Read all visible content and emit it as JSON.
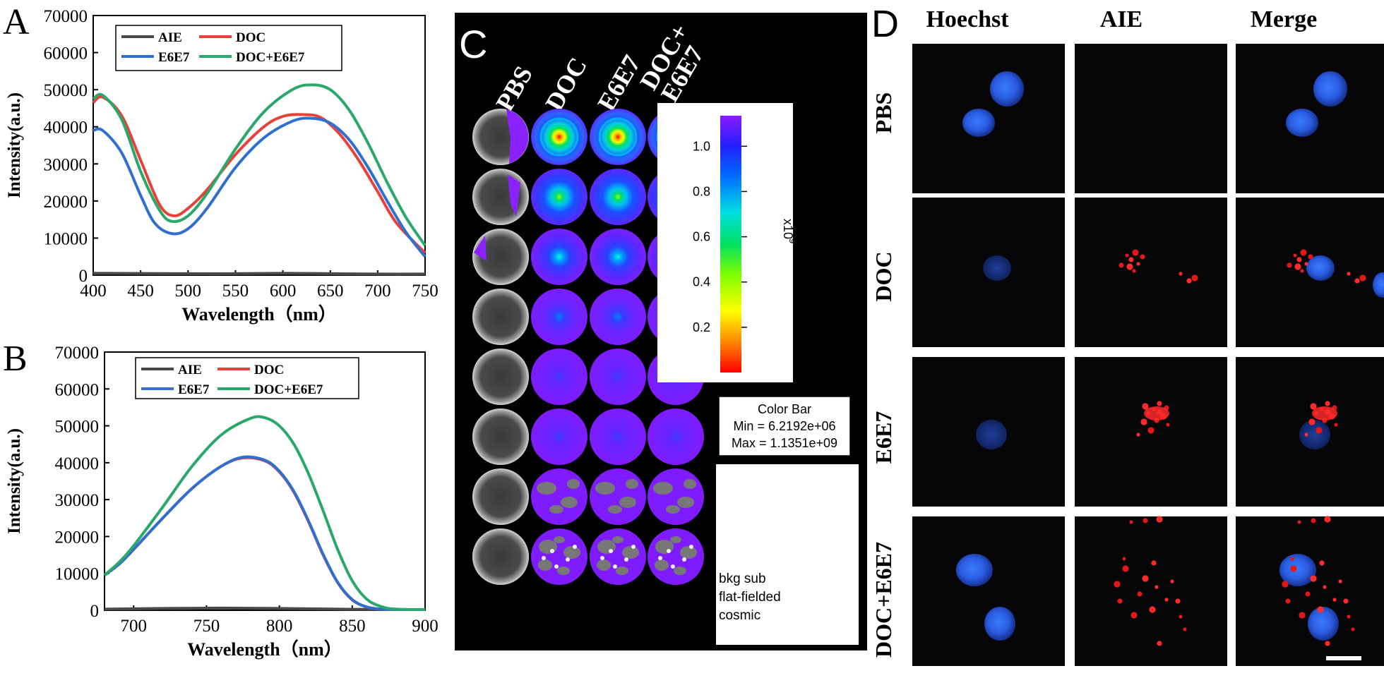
{
  "chart_data": [
    {
      "panel_label": "A",
      "type": "line",
      "title": "",
      "xlabel": "Wavelength（nm）",
      "ylabel": "Intensity(a.u.)",
      "xlim": [
        400,
        750
      ],
      "ylim": [
        0,
        70000
      ],
      "xticks": [
        400,
        450,
        500,
        550,
        600,
        650,
        700,
        750
      ],
      "yticks": [
        0,
        10000,
        20000,
        30000,
        40000,
        50000,
        60000,
        70000
      ],
      "legend_position": "top-left",
      "series": [
        {
          "name": "AIE",
          "color": "#4a4a4a",
          "x": [
            400,
            450,
            500,
            550,
            600,
            650,
            700,
            750
          ],
          "y": [
            500,
            450,
            400,
            400,
            500,
            400,
            300,
            300
          ]
        },
        {
          "name": "DOC",
          "color": "#e8413a",
          "x": [
            400,
            410,
            430,
            450,
            470,
            485,
            500,
            520,
            550,
            580,
            600,
            620,
            640,
            660,
            680,
            700,
            720,
            750
          ],
          "y": [
            46500,
            48000,
            43000,
            31000,
            19000,
            16000,
            18000,
            23000,
            32500,
            40000,
            42800,
            43300,
            42500,
            38000,
            31000,
            22500,
            14000,
            6000
          ]
        },
        {
          "name": "E6E7",
          "color": "#2f6fd0",
          "x": [
            400,
            410,
            430,
            450,
            465,
            483,
            500,
            520,
            550,
            580,
            610,
            630,
            650,
            670,
            690,
            710,
            730,
            750
          ],
          "y": [
            39000,
            39000,
            33000,
            21500,
            14000,
            11200,
            12500,
            18000,
            29000,
            37000,
            41500,
            42300,
            41000,
            36500,
            29000,
            20000,
            11500,
            5000
          ]
        },
        {
          "name": "DOC+E6E7",
          "color": "#2aa86a",
          "x": [
            400,
            410,
            430,
            450,
            470,
            483,
            500,
            520,
            550,
            580,
            610,
            630,
            650,
            670,
            690,
            710,
            730,
            750
          ],
          "y": [
            47500,
            48500,
            42000,
            28000,
            17500,
            14500,
            16000,
            22000,
            34000,
            44000,
            50000,
            51300,
            50000,
            44500,
            35500,
            25000,
            15500,
            8000
          ]
        }
      ]
    },
    {
      "panel_label": "B",
      "type": "line",
      "title": "",
      "xlabel": "Wavelength（nm）",
      "ylabel": "Intensity(a.u.)",
      "xlim": [
        680,
        900
      ],
      "ylim": [
        0,
        70000
      ],
      "xticks": [
        700,
        750,
        800,
        850,
        900
      ],
      "yticks": [
        0,
        10000,
        20000,
        30000,
        40000,
        50000,
        60000,
        70000
      ],
      "legend_position": "top-right",
      "series": [
        {
          "name": "AIE",
          "color": "#4a4a4a",
          "x": [
            680,
            720,
            760,
            800,
            840,
            880,
            900
          ],
          "y": [
            300,
            500,
            600,
            500,
            300,
            200,
            200
          ]
        },
        {
          "name": "DOC",
          "color": "#e8413a",
          "x": [
            680,
            690,
            700,
            720,
            740,
            760,
            775,
            790,
            800,
            810,
            820,
            830,
            840,
            850,
            860,
            870,
            880,
            900
          ],
          "y": [
            9500,
            12500,
            16500,
            25000,
            33000,
            39000,
            41300,
            40500,
            37500,
            32000,
            24000,
            15000,
            7500,
            2800,
            900,
            300,
            200,
            200
          ]
        },
        {
          "name": "E6E7",
          "color": "#2f6fd0",
          "x": [
            680,
            690,
            700,
            720,
            740,
            760,
            775,
            790,
            800,
            810,
            820,
            830,
            840,
            850,
            860,
            870,
            880,
            900
          ],
          "y": [
            9500,
            12500,
            16500,
            25000,
            33000,
            39000,
            41500,
            40700,
            37700,
            32200,
            24200,
            15200,
            7600,
            2900,
            900,
            300,
            200,
            200
          ]
        },
        {
          "name": "DOC+E6E7",
          "color": "#2aa86a",
          "x": [
            680,
            690,
            700,
            720,
            740,
            760,
            780,
            790,
            800,
            810,
            820,
            830,
            840,
            850,
            860,
            870,
            880,
            900
          ],
          "y": [
            9500,
            13000,
            17500,
            28000,
            39000,
            47500,
            52000,
            52200,
            50000,
            45000,
            37000,
            27000,
            16500,
            8000,
            3000,
            1000,
            300,
            200
          ]
        }
      ]
    }
  ],
  "panel_c": {
    "label": "C",
    "columns": [
      "PBS",
      "DOC",
      "E6E7",
      "DOC+\nE6E7"
    ],
    "colorbar": {
      "ticks": [
        "1.0",
        "0.8",
        "0.6",
        "0.4",
        "0.2"
      ],
      "multiplier": "x10",
      "exponent": "9"
    },
    "colorbar_info": {
      "title": "Color Bar",
      "min": "Min = 6.2192e+06",
      "max": "Max = 1.1351e+09"
    },
    "notes": [
      "bkg sub",
      "flat-fielded",
      "cosmic"
    ]
  },
  "panel_d": {
    "label": "D",
    "columns": [
      "Hoechst",
      "AIE",
      "Merge"
    ],
    "rows": [
      "PBS",
      "DOC",
      "E6E7",
      "DOC+E6E7"
    ]
  }
}
